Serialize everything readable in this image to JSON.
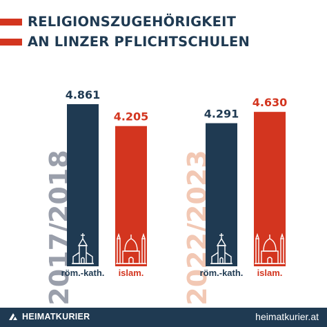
{
  "title": {
    "line1": "RELIGIONSZUGEHÖRIGKEIT",
    "line2": "AN LINZER PFLICHTSCHULEN"
  },
  "colors": {
    "navy": "#1f3a52",
    "red": "#d3351f",
    "year1_label": "#9a9fab",
    "year2_label": "#f2c8b4"
  },
  "chart_data": {
    "type": "bar",
    "groups": [
      {
        "year": "2017/2018",
        "bars": [
          {
            "category": "röm.-kath.",
            "value": 4861,
            "value_label": "4.861",
            "color": "#1f3a52",
            "icon": "church-icon"
          },
          {
            "category": "islam.",
            "value": 4205,
            "value_label": "4.205",
            "color": "#d3351f",
            "icon": "mosque-icon"
          }
        ]
      },
      {
        "year": "2022/2023",
        "bars": [
          {
            "category": "röm.-kath.",
            "value": 4291,
            "value_label": "4.291",
            "color": "#1f3a52",
            "icon": "church-icon"
          },
          {
            "category": "islam.",
            "value": 4630,
            "value_label": "4.630",
            "color": "#d3351f",
            "icon": "mosque-icon"
          }
        ]
      }
    ],
    "ylim": [
      0,
      4861
    ],
    "grid": false,
    "legend": "none"
  },
  "footer": {
    "brand": "HEIMATKURIER",
    "url": "heimatkurier.at"
  }
}
